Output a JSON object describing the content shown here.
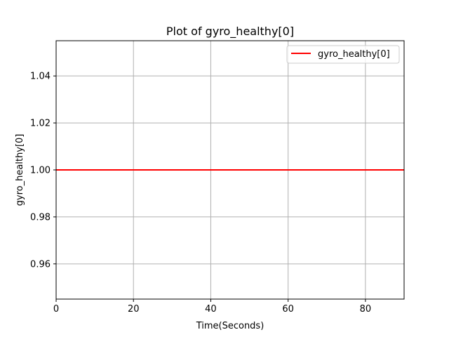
{
  "chart_data": {
    "type": "line",
    "title": "Plot of gyro_healthy[0]",
    "xlabel": "Time(Seconds)",
    "ylabel": "gyro_healthy[0]",
    "xlim": [
      0,
      90
    ],
    "ylim": [
      0.945,
      1.055
    ],
    "xticks": [
      0,
      20,
      40,
      60,
      80
    ],
    "yticks": [
      0.96,
      0.98,
      1.0,
      1.02,
      1.04
    ],
    "xtick_labels": [
      "0",
      "20",
      "40",
      "60",
      "80"
    ],
    "ytick_labels": [
      "0.96",
      "0.98",
      "1.00",
      "1.02",
      "1.04"
    ],
    "grid": true,
    "legend_position": "top-right",
    "series": [
      {
        "name": "gyro_healthy[0]",
        "color": "#ff0000",
        "x": [
          0,
          90
        ],
        "y": [
          1.0,
          1.0
        ]
      }
    ]
  }
}
